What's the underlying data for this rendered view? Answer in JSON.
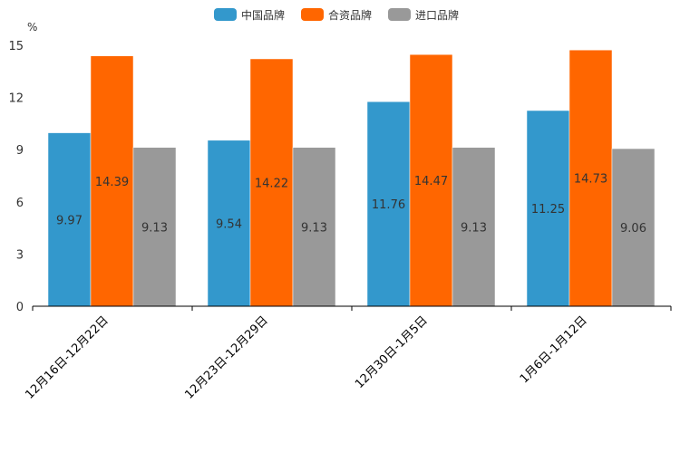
{
  "chart_data": {
    "type": "bar",
    "title": "",
    "xlabel": "",
    "ylabel": "%",
    "ylim": [
      0,
      15
    ],
    "yticks": [
      0,
      3,
      6,
      9,
      12,
      15
    ],
    "grid": false,
    "legend_position": "top-center",
    "categories": [
      "12月16日-12月22日",
      "12月23日-12月29日",
      "12月30日-1月5日",
      "1月6日-1月12日"
    ],
    "series": [
      {
        "name": "中国品牌",
        "color": "#3398cc",
        "values": [
          9.97,
          9.54,
          11.76,
          11.25
        ]
      },
      {
        "name": "合资品牌",
        "color": "#ff6600",
        "values": [
          14.39,
          14.22,
          14.47,
          14.73
        ]
      },
      {
        "name": "进口品牌",
        "color": "#999999",
        "values": [
          9.13,
          9.13,
          9.13,
          9.06
        ]
      }
    ]
  }
}
